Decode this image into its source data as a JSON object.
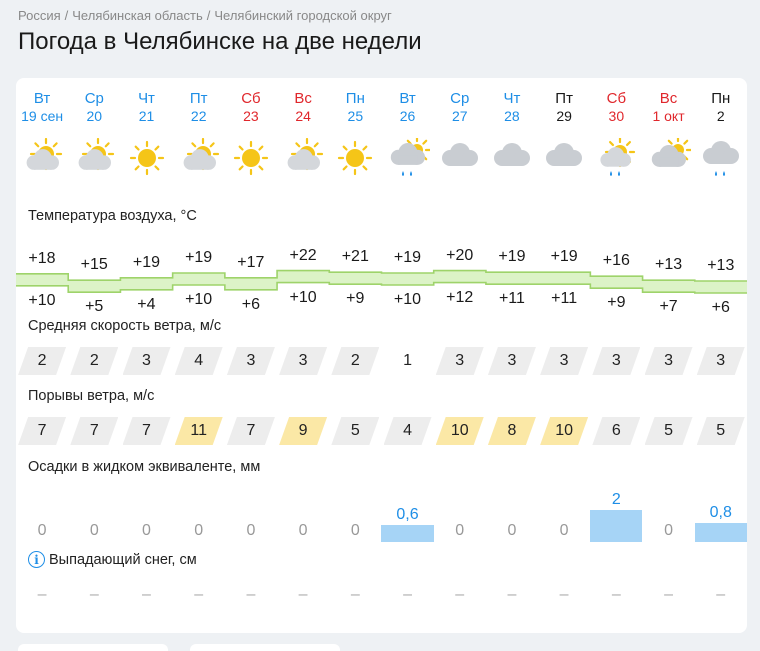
{
  "breadcrumb": [
    "Россия",
    "Челябинская область",
    "Челябинский городской округ"
  ],
  "title": "Погода в Челябинске на две недели",
  "days": [
    {
      "dow": "Вт",
      "date": "19 сен",
      "color": "blue",
      "icon": "partly-cloudy-icon",
      "tmax": "+18",
      "tmin": "+10",
      "wind": "2",
      "gust": "7",
      "precip": "0",
      "snow": "–"
    },
    {
      "dow": "Ср",
      "date": "20",
      "color": "blue",
      "icon": "partly-cloudy-icon",
      "tmax": "+15",
      "tmin": "+5",
      "wind": "2",
      "gust": "7",
      "precip": "0",
      "snow": "–"
    },
    {
      "dow": "Чт",
      "date": "21",
      "color": "blue",
      "icon": "sun-icon",
      "tmax": "+19",
      "tmin": "+4",
      "wind": "3",
      "gust": "7",
      "precip": "0",
      "snow": "–"
    },
    {
      "dow": "Пт",
      "date": "22",
      "color": "blue",
      "icon": "partly-cloudy-icon",
      "tmax": "+19",
      "tmin": "+10",
      "wind": "4",
      "gust": "11",
      "precip": "0",
      "snow": "–"
    },
    {
      "dow": "Сб",
      "date": "23",
      "color": "red",
      "icon": "sun-icon",
      "tmax": "+17",
      "tmin": "+6",
      "wind": "3",
      "gust": "7",
      "precip": "0",
      "snow": "–"
    },
    {
      "dow": "Вс",
      "date": "24",
      "color": "red",
      "icon": "partly-cloudy-icon",
      "tmax": "+22",
      "tmin": "+10",
      "wind": "3",
      "gust": "9",
      "precip": "0",
      "snow": "–"
    },
    {
      "dow": "Пн",
      "date": "25",
      "color": "blue",
      "icon": "sun-icon",
      "tmax": "+21",
      "tmin": "+9",
      "wind": "2",
      "gust": "5",
      "precip": "0",
      "snow": "–"
    },
    {
      "dow": "Вт",
      "date": "26",
      "color": "blue",
      "icon": "cloudy-rain-sun-icon",
      "tmax": "+19",
      "tmin": "+10",
      "wind": "1",
      "gust": "4",
      "precip": "0,6",
      "snow": "–"
    },
    {
      "dow": "Ср",
      "date": "27",
      "color": "blue",
      "icon": "cloudy-icon",
      "tmax": "+20",
      "tmin": "+12",
      "wind": "3",
      "gust": "10",
      "precip": "0",
      "snow": "–"
    },
    {
      "dow": "Чт",
      "date": "28",
      "color": "blue",
      "icon": "cloudy-icon",
      "tmax": "+19",
      "tmin": "+11",
      "wind": "3",
      "gust": "8",
      "precip": "0",
      "snow": "–"
    },
    {
      "dow": "Пт",
      "date": "29",
      "color": "dark",
      "icon": "cloudy-icon",
      "tmax": "+19",
      "tmin": "+11",
      "wind": "3",
      "gust": "10",
      "precip": "0",
      "snow": "–"
    },
    {
      "dow": "Сб",
      "date": "30",
      "color": "red",
      "icon": "partly-cloudy-rain-icon",
      "tmax": "+16",
      "tmin": "+9",
      "wind": "3",
      "gust": "6",
      "precip": "2",
      "snow": "–"
    },
    {
      "dow": "Вс",
      "date": "1 окт",
      "color": "red",
      "icon": "cloudy-sun-icon",
      "tmax": "+13",
      "tmin": "+7",
      "wind": "3",
      "gust": "5",
      "precip": "0",
      "snow": "–"
    },
    {
      "dow": "Пн",
      "date": "2",
      "color": "dark",
      "icon": "cloudy-rain-icon",
      "tmax": "+13",
      "tmin": "+6",
      "wind": "3",
      "gust": "5",
      "precip": "0,8",
      "snow": "–"
    }
  ],
  "labels": {
    "temp": "Температура воздуха, °C",
    "wind": "Средняя скорость ветра, м/с",
    "gust": "Порывы ветра, м/с",
    "precip": "Осадки в жидком эквиваленте, мм",
    "snow": "Выпадающий снег, см"
  },
  "colors": {
    "blue": "#1e8ee6",
    "red": "#e0272c",
    "sun": "#f5c518",
    "cloud": "#c9cdd2",
    "temp_band": "#dcf3c7",
    "temp_line": "#9ed36a",
    "precip_bar": "#a6d4f6",
    "gust_high": "#fbe8a6"
  }
}
